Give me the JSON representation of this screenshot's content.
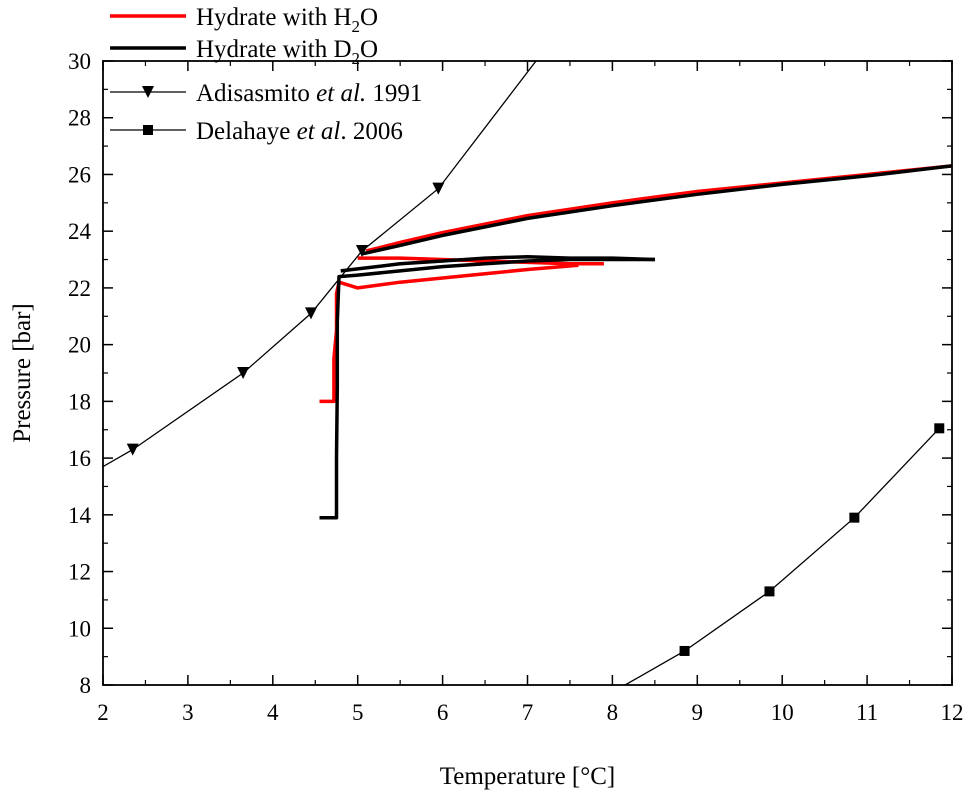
{
  "chart_data": {
    "type": "line",
    "xlabel": "Temperature [°C]",
    "ylabel": "Pressure [bar]",
    "xlim": [
      2,
      12
    ],
    "ylim": [
      8,
      30
    ],
    "x_ticks": [
      "2",
      "3",
      "4",
      "5",
      "6",
      "7",
      "8",
      "9",
      "10",
      "11",
      "12"
    ],
    "y_ticks": [
      "8",
      "10",
      "12",
      "14",
      "16",
      "18",
      "20",
      "22",
      "24",
      "26",
      "28",
      "30"
    ],
    "grid": false,
    "legend_position": "top-left",
    "legend": [
      {
        "text_main": "Hydrate with H",
        "sub": "2",
        "text_tail": "O",
        "series": "h2o"
      },
      {
        "text_main": "Hydrate with D",
        "sub": "2",
        "text_tail": "O",
        "series": "d2o"
      },
      {
        "author": "Adisasmito ",
        "etal": "et al.",
        "year": " 1991",
        "series": "adisasmito"
      },
      {
        "author": "Delahaye ",
        "etal": "et al",
        "year": ". 2006",
        "series": "delahaye"
      }
    ],
    "series": [
      {
        "id": "h2o",
        "color": "#ff0000",
        "segments": [
          [
            [
              4.55,
              18.0
            ],
            [
              4.72,
              18.0
            ],
            [
              4.72,
              19.5
            ],
            [
              4.75,
              20.5
            ],
            [
              4.75,
              21.8
            ],
            [
              4.78,
              22.2
            ],
            [
              5.0,
              22.0
            ],
            [
              5.5,
              22.2
            ],
            [
              6.0,
              22.35
            ],
            [
              6.5,
              22.5
            ],
            [
              7.0,
              22.65
            ],
            [
              7.6,
              22.8
            ]
          ],
          [
            [
              5.0,
              23.05
            ],
            [
              5.5,
              23.05
            ],
            [
              6.0,
              23.0
            ],
            [
              6.5,
              22.95
            ],
            [
              7.0,
              22.9
            ],
            [
              7.5,
              22.85
            ],
            [
              7.9,
              22.85
            ]
          ],
          [
            [
              5.1,
              23.3
            ],
            [
              5.5,
              23.6
            ],
            [
              6.0,
              23.95
            ],
            [
              6.5,
              24.25
            ],
            [
              7.0,
              24.55
            ],
            [
              8.0,
              25.0
            ],
            [
              9.0,
              25.4
            ],
            [
              10.0,
              25.7
            ],
            [
              11.0,
              26.0
            ],
            [
              12.0,
              26.3
            ]
          ]
        ]
      },
      {
        "id": "d2o",
        "color": "#000000",
        "segments": [
          [
            [
              4.55,
              13.9
            ],
            [
              4.75,
              13.9
            ],
            [
              4.75,
              16.0
            ],
            [
              4.76,
              18.5
            ],
            [
              4.76,
              20.8
            ],
            [
              4.78,
              22.4
            ],
            [
              5.0,
              22.45
            ],
            [
              5.5,
              22.6
            ],
            [
              6.0,
              22.75
            ],
            [
              6.5,
              22.85
            ],
            [
              7.0,
              22.95
            ],
            [
              7.5,
              23.0
            ],
            [
              8.5,
              23.0
            ]
          ],
          [
            [
              4.8,
              22.6
            ],
            [
              5.5,
              22.85
            ],
            [
              6.0,
              22.95
            ],
            [
              6.5,
              23.05
            ],
            [
              7.0,
              23.1
            ],
            [
              7.5,
              23.05
            ],
            [
              8.0,
              23.05
            ],
            [
              8.5,
              23.0
            ]
          ],
          [
            [
              5.05,
              23.2
            ],
            [
              5.5,
              23.5
            ],
            [
              6.0,
              23.85
            ],
            [
              6.5,
              24.15
            ],
            [
              7.0,
              24.45
            ],
            [
              8.0,
              24.9
            ],
            [
              9.0,
              25.3
            ],
            [
              10.0,
              25.65
            ],
            [
              11.0,
              25.95
            ],
            [
              12.0,
              26.3
            ]
          ]
        ]
      },
      {
        "id": "adisasmito",
        "name": "Adisasmito et al. 1991",
        "color": "#000000",
        "marker": "triangle-down",
        "x": [
          2.35,
          3.65,
          4.45,
          5.05,
          5.95
        ],
        "y": [
          16.3,
          19.0,
          21.1,
          23.3,
          25.5
        ],
        "line_from": [
          2.0,
          15.7
        ],
        "line_to": [
          7.1,
          30.0
        ]
      },
      {
        "id": "delahaye",
        "name": "Delahaye et al. 2006",
        "color": "#000000",
        "marker": "square",
        "x": [
          8.85,
          9.85,
          10.85,
          11.85
        ],
        "y": [
          9.2,
          11.3,
          13.9,
          17.05
        ],
        "line_from": [
          8.15,
          8.0
        ]
      }
    ]
  }
}
